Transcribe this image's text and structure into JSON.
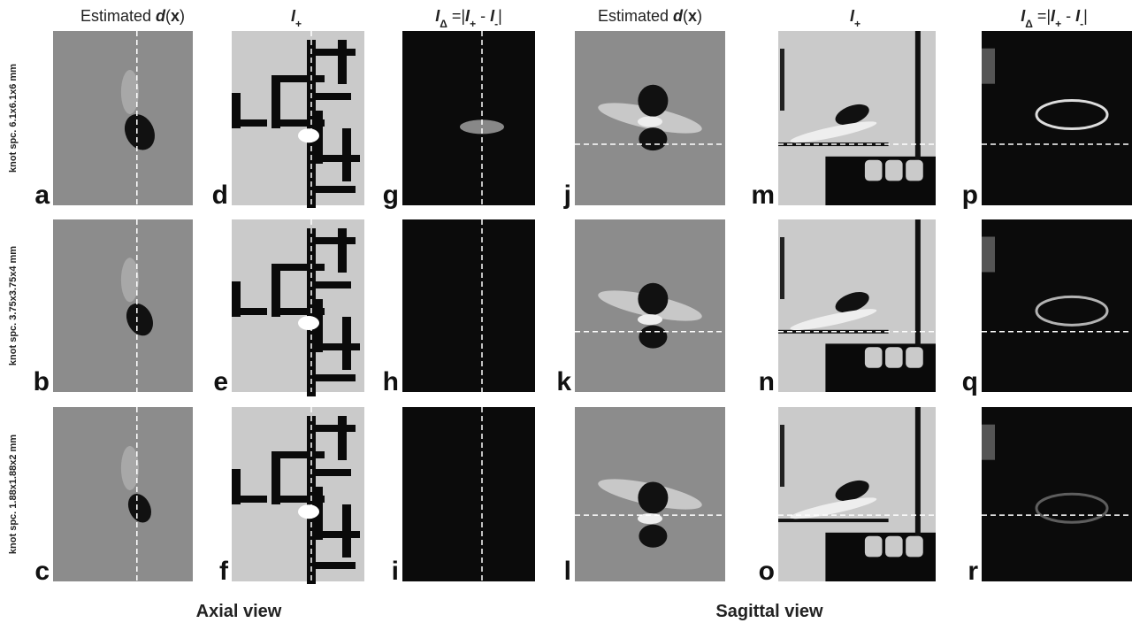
{
  "headers": [
    [
      {
        "text": "Estimated "
      },
      {
        "text": "d",
        "style": "italic"
      },
      {
        "text": "("
      },
      {
        "text": "x",
        "style": "bold"
      },
      {
        "text": ")"
      }
    ],
    [
      {
        "text": "I",
        "style": "italic"
      },
      {
        "text": "+",
        "style": "sub"
      }
    ],
    [
      {
        "text": "I",
        "style": "italic"
      },
      {
        "text": "Δ",
        "style": "sub"
      },
      {
        "text": " =|"
      },
      {
        "text": "I",
        "style": "italic"
      },
      {
        "text": "+",
        "style": "sub"
      },
      {
        "text": " - "
      },
      {
        "text": "I",
        "style": "italic"
      },
      {
        "text": "-",
        "style": "sub"
      },
      {
        "text": "|"
      }
    ],
    [
      {
        "text": "Estimated "
      },
      {
        "text": "d",
        "style": "italic"
      },
      {
        "text": "("
      },
      {
        "text": "x",
        "style": "bold"
      },
      {
        "text": ")"
      }
    ],
    [
      {
        "text": "I",
        "style": "italic"
      },
      {
        "text": "+",
        "style": "sub"
      }
    ],
    [
      {
        "text": "I",
        "style": "italic"
      },
      {
        "text": "Δ",
        "style": "sub"
      },
      {
        "text": " =|"
      },
      {
        "text": "I",
        "style": "italic"
      },
      {
        "text": "+",
        "style": "sub"
      },
      {
        "text": " - "
      },
      {
        "text": "I",
        "style": "italic"
      },
      {
        "text": "-",
        "style": "sub"
      },
      {
        "text": "|"
      }
    ]
  ],
  "rows": [
    {
      "label": "knot spc. 6.1x6.1x6 mm",
      "letters": [
        "a",
        "d",
        "g",
        "j",
        "m",
        "p"
      ]
    },
    {
      "label": "knot spc. 3.75x3.75x4 mm",
      "letters": [
        "b",
        "e",
        "h",
        "k",
        "n",
        "q"
      ]
    },
    {
      "label": "knot spc. 1.88x1.88x2 mm",
      "letters": [
        "c",
        "f",
        "i",
        "l",
        "o",
        "r"
      ]
    }
  ],
  "footer": {
    "axial": "Axial view",
    "sagittal": "Sagittal view"
  }
}
